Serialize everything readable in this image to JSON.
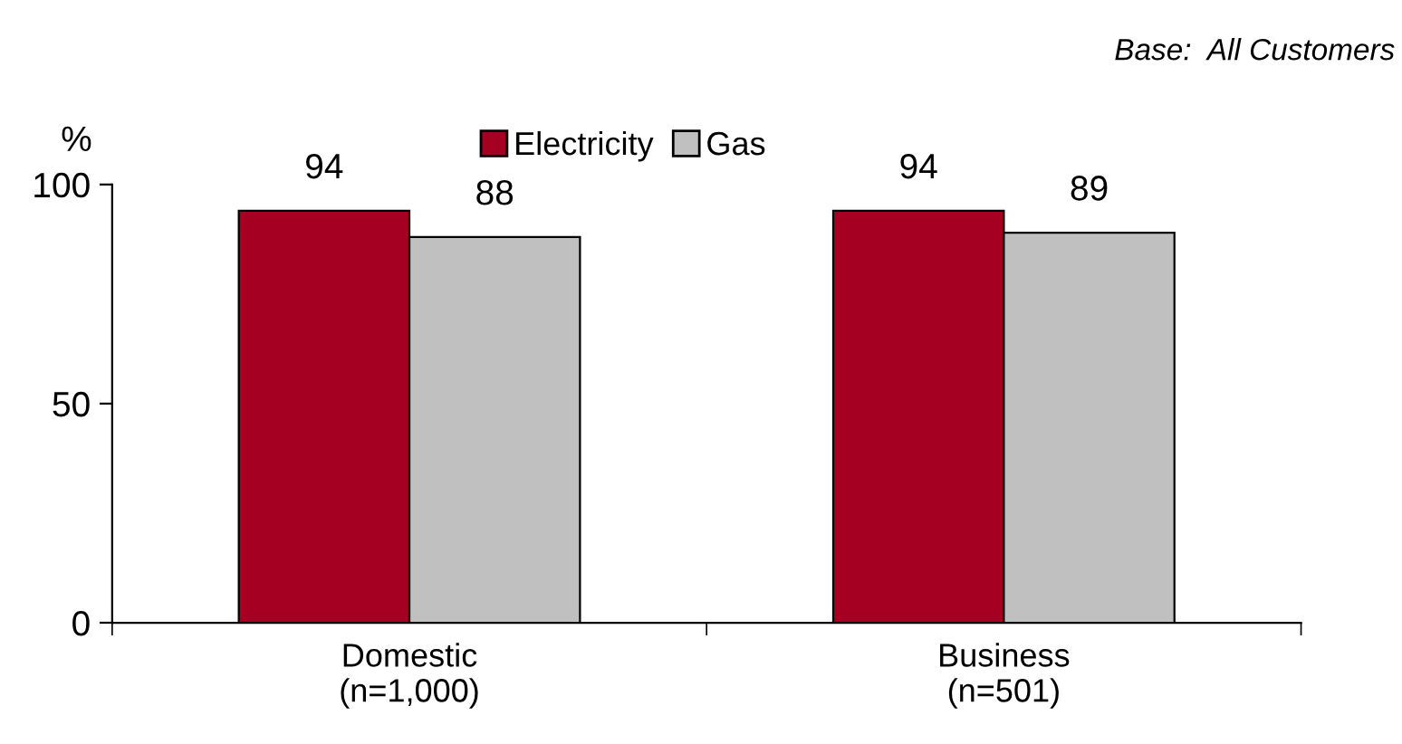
{
  "chart_data": {
    "type": "bar",
    "categories": [
      "Domestic\n(n=1,000)",
      "Business\n(n=501)"
    ],
    "series": [
      {
        "name": "Electricity",
        "color": "#a50021",
        "values": [
          94,
          94
        ]
      },
      {
        "name": "Gas",
        "color": "#c0c0c0",
        "values": [
          88,
          89
        ]
      }
    ],
    "ylabel": "%",
    "ylim": [
      0,
      100
    ],
    "yticks": [
      0,
      50,
      100
    ],
    "data_labels": true,
    "legend": "top",
    "grid": false,
    "annotations": [
      "Base:  All Customers"
    ]
  }
}
